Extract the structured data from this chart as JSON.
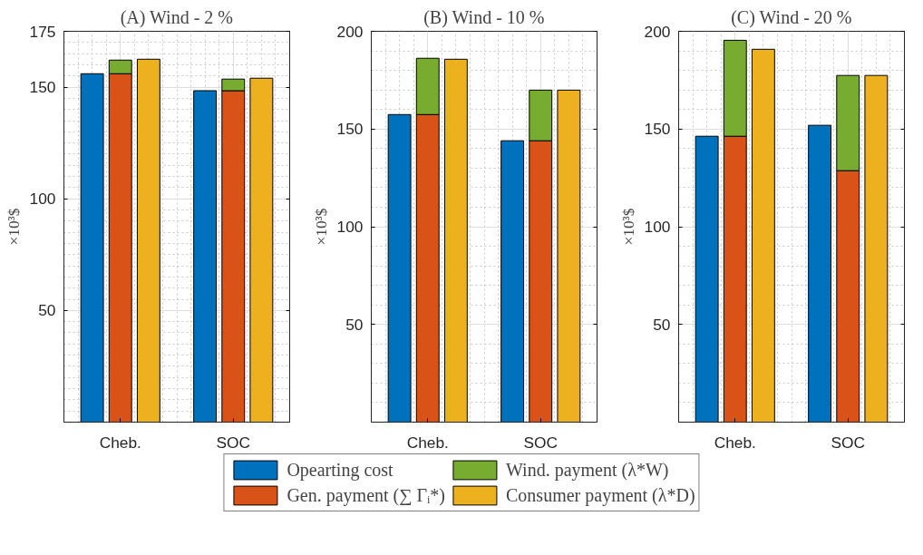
{
  "chart_data": [
    {
      "type": "bar",
      "title": "(A) Wind - 2 %",
      "ylabel": "×10³$",
      "categories": [
        null,
        "Cheb.",
        null,
        null,
        null,
        "SOC",
        null
      ],
      "ylim": [
        0,
        175
      ],
      "yticks": [
        50,
        100,
        150,
        175
      ],
      "grid": true,
      "stacked": true,
      "legend": "bottom",
      "series": [
        {
          "name": "Opearting cost",
          "color": "#0072bd",
          "values": [
            156.0,
            null,
            null,
            null,
            148.4,
            null,
            null
          ]
        },
        {
          "name": "Gen. payment (∑ Γᵢ*)",
          "color": "#d95319",
          "values": [
            null,
            156.0,
            null,
            null,
            null,
            148.4,
            null
          ]
        },
        {
          "name": "Wind. payment (λ*W)",
          "color": "#77ac30",
          "values": [
            null,
            6.1,
            null,
            null,
            null,
            5.2,
            null
          ]
        },
        {
          "name": "Consumer payment (λ*D)",
          "color": "#edb120",
          "values": [
            null,
            null,
            162.5,
            null,
            null,
            null,
            154.0
          ]
        }
      ]
    },
    {
      "type": "bar",
      "title": "(B) Wind - 10 %",
      "ylabel": "×10³$",
      "categories": [
        null,
        "Cheb.",
        null,
        null,
        null,
        "SOC",
        null
      ],
      "ylim": [
        0,
        200
      ],
      "yticks": [
        50,
        100,
        150,
        200
      ],
      "grid": true,
      "stacked": true,
      "series": [
        {
          "color": "#0072bd",
          "values": [
            157.4,
            null,
            null,
            null,
            144.0,
            null,
            null
          ]
        },
        {
          "color": "#d95319",
          "values": [
            null,
            157.4,
            null,
            null,
            null,
            144.0,
            null
          ]
        },
        {
          "color": "#77ac30",
          "values": [
            null,
            28.8,
            null,
            null,
            null,
            25.9,
            null
          ]
        },
        {
          "color": "#edb120",
          "values": [
            null,
            null,
            185.7,
            null,
            null,
            null,
            169.9
          ]
        }
      ]
    },
    {
      "type": "bar",
      "title": "(C) Wind - 20 %",
      "ylabel": "×10³$",
      "categories": [
        null,
        "Cheb.",
        null,
        null,
        null,
        "SOC",
        null
      ],
      "ylim": [
        0,
        200
      ],
      "yticks": [
        50,
        100,
        150,
        200
      ],
      "grid": true,
      "stacked": true,
      "series": [
        {
          "color": "#0072bd",
          "values": [
            146.3,
            null,
            null,
            null,
            151.9,
            null,
            null
          ]
        },
        {
          "color": "#d95319",
          "values": [
            null,
            146.3,
            null,
            null,
            null,
            128.7,
            null
          ]
        },
        {
          "color": "#77ac30",
          "values": [
            null,
            49.1,
            null,
            null,
            null,
            48.7,
            null
          ]
        },
        {
          "color": "#edb120",
          "values": [
            null,
            null,
            190.8,
            null,
            null,
            null,
            177.4
          ]
        }
      ]
    }
  ]
}
